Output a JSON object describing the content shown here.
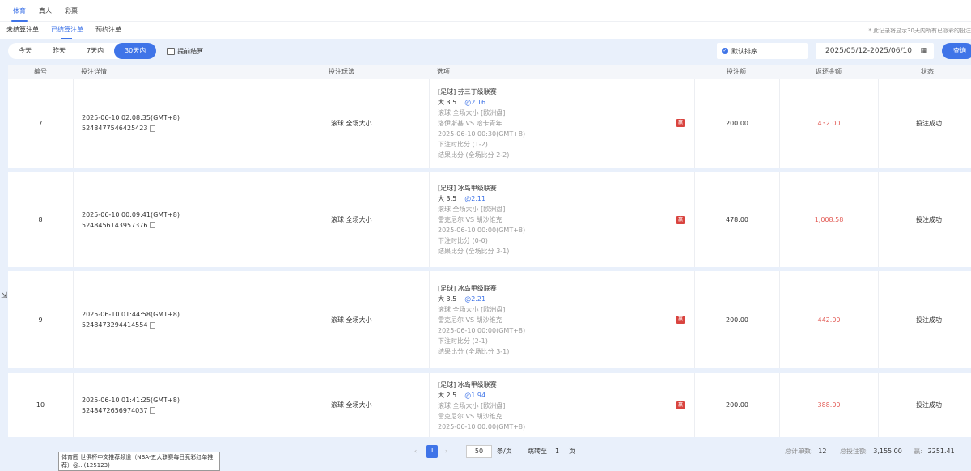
{
  "top_tabs": [
    "体育",
    "真人",
    "彩票"
  ],
  "sub_tabs": [
    "未结算注单",
    "已结算注单",
    "预约注单"
  ],
  "note": "* 此记录将显示30天内所有已派彩的投注",
  "filter": {
    "ranges": [
      "今天",
      "昨天",
      "7天内",
      "30天内"
    ],
    "active_range": "30天内",
    "early_settle": "提前结算",
    "sort": "默认排序",
    "date_range": "2025/05/12-2025/06/10",
    "query": "查询"
  },
  "columns": [
    "编号",
    "投注详情",
    "投注玩法",
    "选项",
    "投注额",
    "返还金额",
    "状态"
  ],
  "rows": [
    {
      "no": "7",
      "time": "2025-06-10 02:08:35(GMT+8)",
      "id": "5248477546425423",
      "play": "滚球   全场大小",
      "league": "[足球] 芬三丁级联赛",
      "pick": "大 3.5",
      "odds": "@2.16",
      "market": "滚球  全场大小 [欧洲盘]",
      "match": "洛伊斯基 VS 哈卡青年",
      "kick": "2025-06-10 00:30(GMT+8)",
      "bet_score": "下注时比分 (1-2)",
      "result": "结果比分 (全场比分 2-2)",
      "badge": "赢",
      "amount": "200.00",
      "return": "432.00",
      "status": "投注成功"
    },
    {
      "no": "8",
      "time": "2025-06-10 00:09:41(GMT+8)",
      "id": "5248456143957376",
      "play": "滚球   全场大小",
      "league": "[足球] 冰岛甲级联赛",
      "pick": "大 3.5",
      "odds": "@2.11",
      "market": "滚球  全场大小 [欧洲盘]",
      "match": "雷克尼尔 VS 胡沙维克",
      "kick": "2025-06-10 00:00(GMT+8)",
      "bet_score": "下注时比分 (0-0)",
      "result": "结果比分 (全场比分 3-1)",
      "badge": "赢",
      "amount": "478.00",
      "return": "1,008.58",
      "status": "投注成功"
    },
    {
      "no": "9",
      "time": "2025-06-10 01:44:58(GMT+8)",
      "id": "5248473294414554",
      "play": "滚球   全场大小",
      "league": "[足球] 冰岛甲级联赛",
      "pick": "大 3.5",
      "odds": "@2.21",
      "market": "滚球  全场大小 [欧洲盘]",
      "match": "雷克尼尔 VS 胡沙维克",
      "kick": "2025-06-10 00:00(GMT+8)",
      "bet_score": "下注时比分 (2-1)",
      "result": "结果比分 (全场比分 3-1)",
      "badge": "赢",
      "amount": "200.00",
      "return": "442.00",
      "status": "投注成功"
    },
    {
      "no": "10",
      "time": "2025-06-10 01:41:25(GMT+8)",
      "id": "5248472656974037",
      "play": "滚球   全场大小",
      "league": "[足球] 冰岛甲级联赛",
      "pick": "大 2.5",
      "odds": "@1.94",
      "market": "滚球  全场大小 [欧洲盘]",
      "match": "雷克尼尔 VS 胡沙维克",
      "kick": "2025-06-10 00:00(GMT+8)",
      "bet_score": "",
      "result": "",
      "badge": "赢",
      "amount": "200.00",
      "return": "388.00",
      "status": "投注成功"
    }
  ],
  "pagination": {
    "prev": "‹",
    "page": "1",
    "next": "›",
    "page_size": "50",
    "per_page": "条/页",
    "jump": "跳转至",
    "jump_page": "1",
    "page_unit": "页"
  },
  "summary": {
    "count_label": "总计单数:",
    "count": "12",
    "total_label": "总投注额:",
    "total": "3,155.00",
    "win_label": "赢:",
    "win": "2251.41"
  },
  "tooltip": "体育园 世俱杯中文推荐频道（NBA-五大联赛每日竞彩红单推荐）@...(125123)",
  "colors": {
    "accent": "#3f74e8",
    "return": "#e25b55",
    "badge": "#d9443f",
    "background": "#e9f0fb"
  }
}
